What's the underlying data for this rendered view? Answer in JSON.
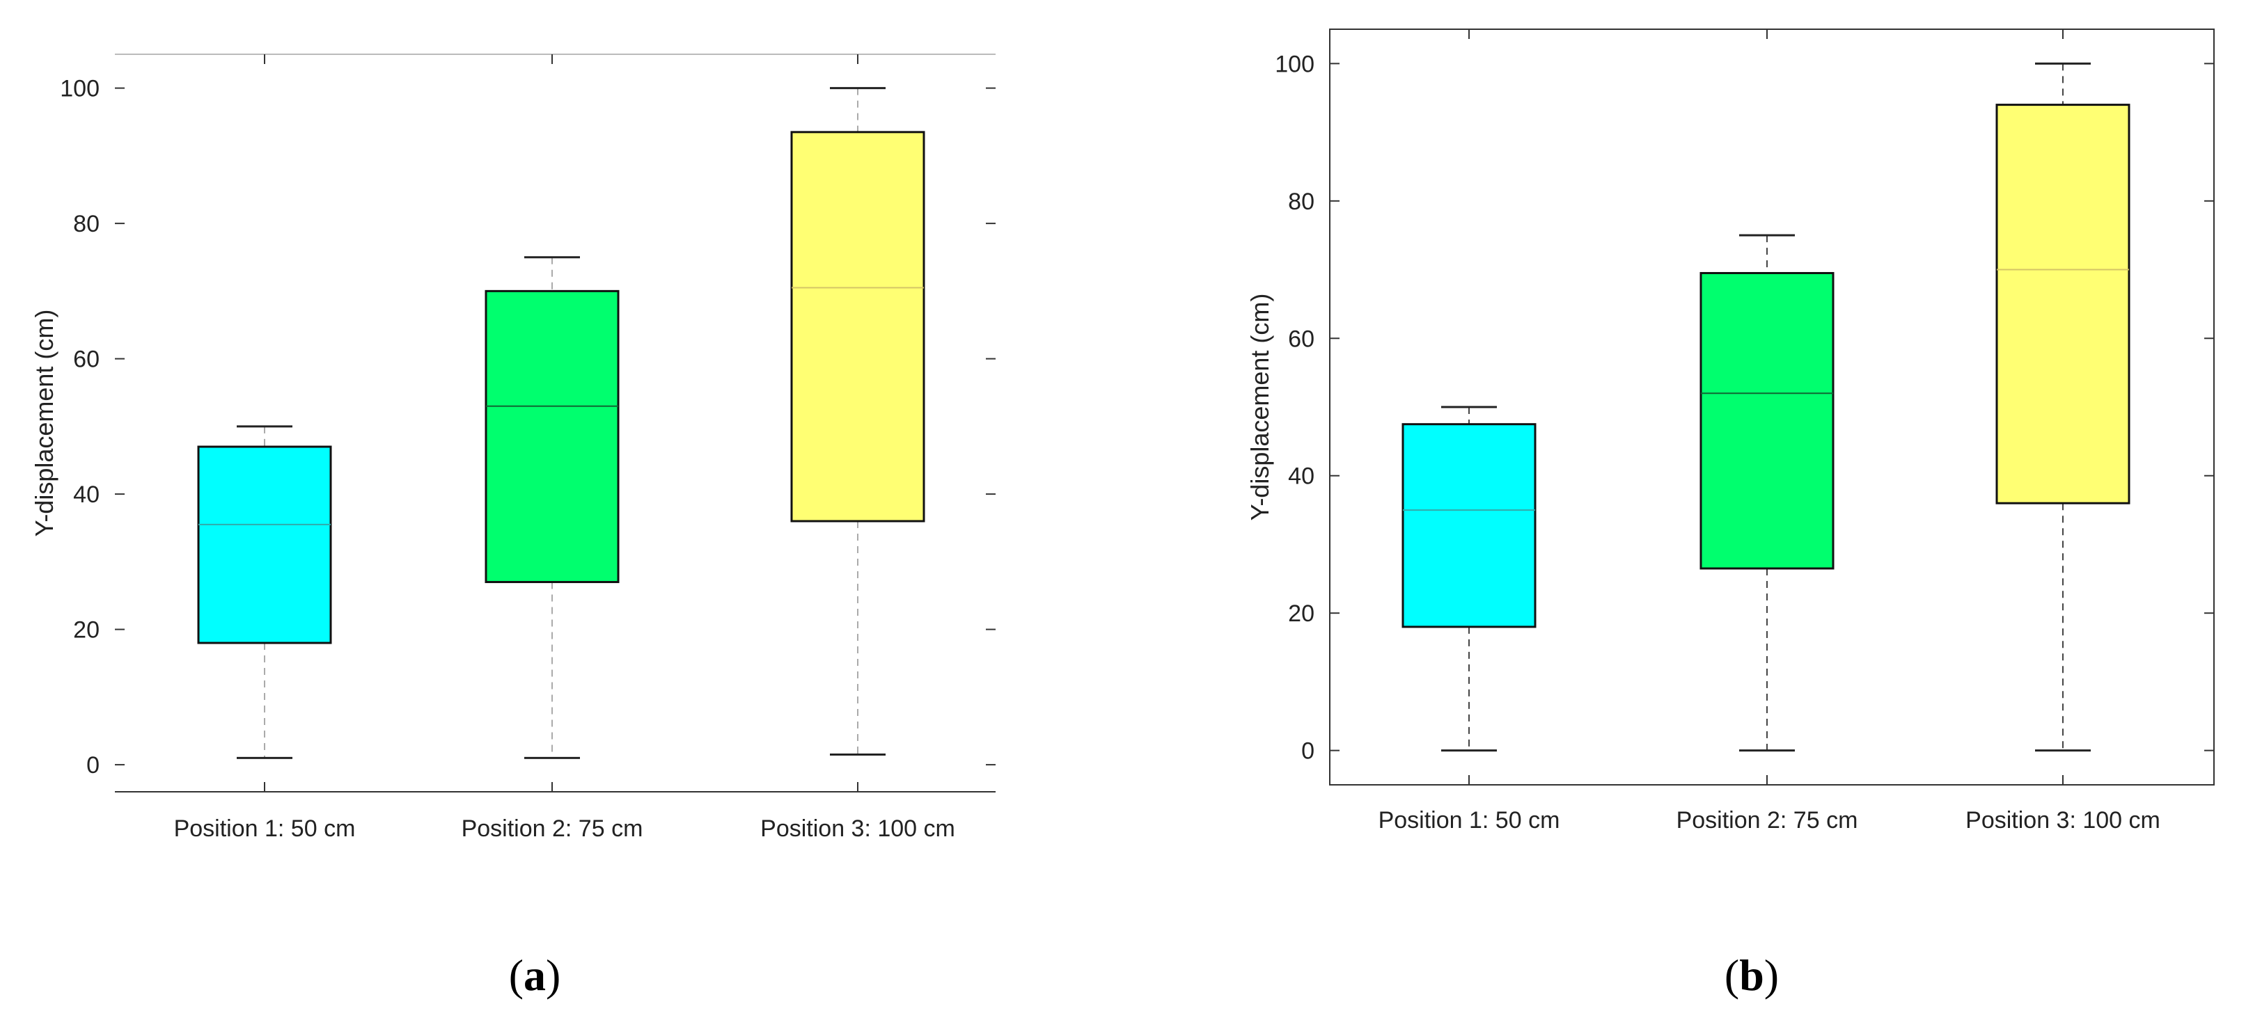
{
  "chart_data": [
    {
      "panel": "a",
      "type": "box",
      "title": "",
      "xlabel": "",
      "ylabel": "Y-displacement (cm)",
      "ylim": [
        -4,
        105
      ],
      "yticks": [
        0,
        20,
        40,
        60,
        80,
        100
      ],
      "frame": "top-bottom-lines",
      "grid": false,
      "categories": [
        "Position 1: 50 cm",
        "Position 2: 75 cm",
        "Position 3: 100 cm"
      ],
      "boxes": [
        {
          "category": "Position 1: 50 cm",
          "min": 1,
          "q1": 18,
          "median": 35.5,
          "q3": 47,
          "max": 50,
          "color": "#00ffff"
        },
        {
          "category": "Position 2: 75 cm",
          "min": 1,
          "q1": 27,
          "median": 53,
          "q3": 70,
          "max": 75,
          "color": "#00ff6e"
        },
        {
          "category": "Position 3: 100 cm",
          "min": 1.5,
          "q1": 36,
          "median": 70.5,
          "q3": 93.5,
          "max": 100,
          "color": "#ffff73"
        }
      ]
    },
    {
      "panel": "b",
      "type": "box",
      "title": "",
      "xlabel": "",
      "ylabel": "Y-displacement (cm)",
      "ylim": [
        -5,
        105
      ],
      "yticks": [
        0,
        20,
        40,
        60,
        80,
        100
      ],
      "frame": "full-box",
      "grid": false,
      "categories": [
        "Position 1: 50 cm",
        "Position 2: 75 cm",
        "Position 3: 100 cm"
      ],
      "boxes": [
        {
          "category": "Position 1: 50 cm",
          "min": 0,
          "q1": 18,
          "median": 35,
          "q3": 47.5,
          "max": 50,
          "color": "#00ffff"
        },
        {
          "category": "Position 2: 75 cm",
          "min": 0,
          "q1": 26.5,
          "median": 52,
          "q3": 69.5,
          "max": 75,
          "color": "#00ff6e"
        },
        {
          "category": "Position 3: 100 cm",
          "min": 0,
          "q1": 36,
          "median": 70,
          "q3": 94,
          "max": 100,
          "color": "#ffff73"
        }
      ]
    }
  ],
  "panel_labels": {
    "a": "a",
    "b": "b"
  }
}
